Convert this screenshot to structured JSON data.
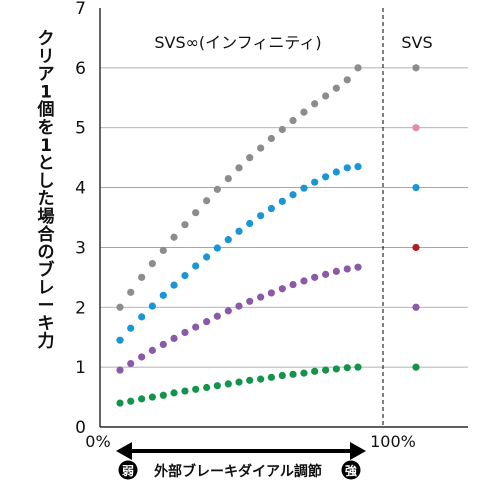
{
  "chart_data": {
    "type": "scatter",
    "ylabel": "クリア1個を1とした場合のブレーキ力",
    "xlabel": "外部ブレーキダイアル調節",
    "xlabel_left_badge": "弱",
    "xlabel_right_badge": "強",
    "xlim": [
      0,
      100
    ],
    "ylim": [
      0,
      7
    ],
    "yticks": [
      "0",
      "1",
      "2",
      "3",
      "4",
      "5",
      "6",
      "7"
    ],
    "xticks": [
      "0%",
      "100%"
    ],
    "grid": true,
    "panels": [
      {
        "label": "SVS∞(インフィニティ)"
      },
      {
        "label": "SVS"
      }
    ],
    "series": [
      {
        "color": "#8c8c8c",
        "x": [
          0,
          4.5,
          9.1,
          13.6,
          18.2,
          22.7,
          27.3,
          31.8,
          36.4,
          40.9,
          45.5,
          50,
          54.5,
          59.1,
          63.6,
          68.2,
          72.7,
          77.3,
          81.8,
          86.4,
          90.9,
          95.5,
          100
        ],
        "y": [
          2.0,
          2.25,
          2.5,
          2.73,
          2.95,
          3.17,
          3.38,
          3.58,
          3.78,
          3.97,
          4.15,
          4.33,
          4.5,
          4.66,
          4.82,
          4.97,
          5.12,
          5.26,
          5.4,
          5.53,
          5.66,
          5.8,
          6.0
        ],
        "svs_value": 6
      },
      {
        "color": "#e48aae",
        "x": [],
        "y": [],
        "svs_value": 5
      },
      {
        "color": "#1a96d6",
        "x": [
          0,
          4.5,
          9.1,
          13.6,
          18.2,
          22.7,
          27.3,
          31.8,
          36.4,
          40.9,
          45.5,
          50,
          54.5,
          59.1,
          63.6,
          68.2,
          72.7,
          77.3,
          81.8,
          86.4,
          90.9,
          95.5,
          100
        ],
        "y": [
          1.45,
          1.65,
          1.84,
          2.02,
          2.2,
          2.37,
          2.53,
          2.69,
          2.84,
          2.99,
          3.13,
          3.27,
          3.4,
          3.53,
          3.65,
          3.77,
          3.88,
          3.99,
          4.09,
          4.18,
          4.26,
          4.33,
          4.35
        ],
        "svs_value": 4
      },
      {
        "color": "#b01e23",
        "x": [],
        "y": [],
        "svs_value": 3
      },
      {
        "color": "#8a5aa9",
        "x": [
          0,
          4.5,
          9.1,
          13.6,
          18.2,
          22.7,
          27.3,
          31.8,
          36.4,
          40.9,
          45.5,
          50,
          54.5,
          59.1,
          63.6,
          68.2,
          72.7,
          77.3,
          81.8,
          86.4,
          90.9,
          95.5,
          100
        ],
        "y": [
          0.95,
          1.06,
          1.17,
          1.28,
          1.38,
          1.48,
          1.58,
          1.67,
          1.76,
          1.85,
          1.94,
          2.02,
          2.1,
          2.17,
          2.24,
          2.31,
          2.38,
          2.44,
          2.5,
          2.55,
          2.6,
          2.64,
          2.67
        ],
        "svs_value": 2
      },
      {
        "color": "#14944a",
        "x": [
          0,
          4.5,
          9.1,
          13.6,
          18.2,
          22.7,
          27.3,
          31.8,
          36.4,
          40.9,
          45.5,
          50,
          54.5,
          59.1,
          63.6,
          68.2,
          72.7,
          77.3,
          81.8,
          86.4,
          90.9,
          95.5,
          100
        ],
        "y": [
          0.4,
          0.43,
          0.47,
          0.5,
          0.53,
          0.57,
          0.6,
          0.63,
          0.66,
          0.69,
          0.72,
          0.75,
          0.78,
          0.8,
          0.83,
          0.86,
          0.88,
          0.9,
          0.93,
          0.95,
          0.97,
          0.99,
          1.0
        ],
        "svs_value": 1
      }
    ]
  }
}
